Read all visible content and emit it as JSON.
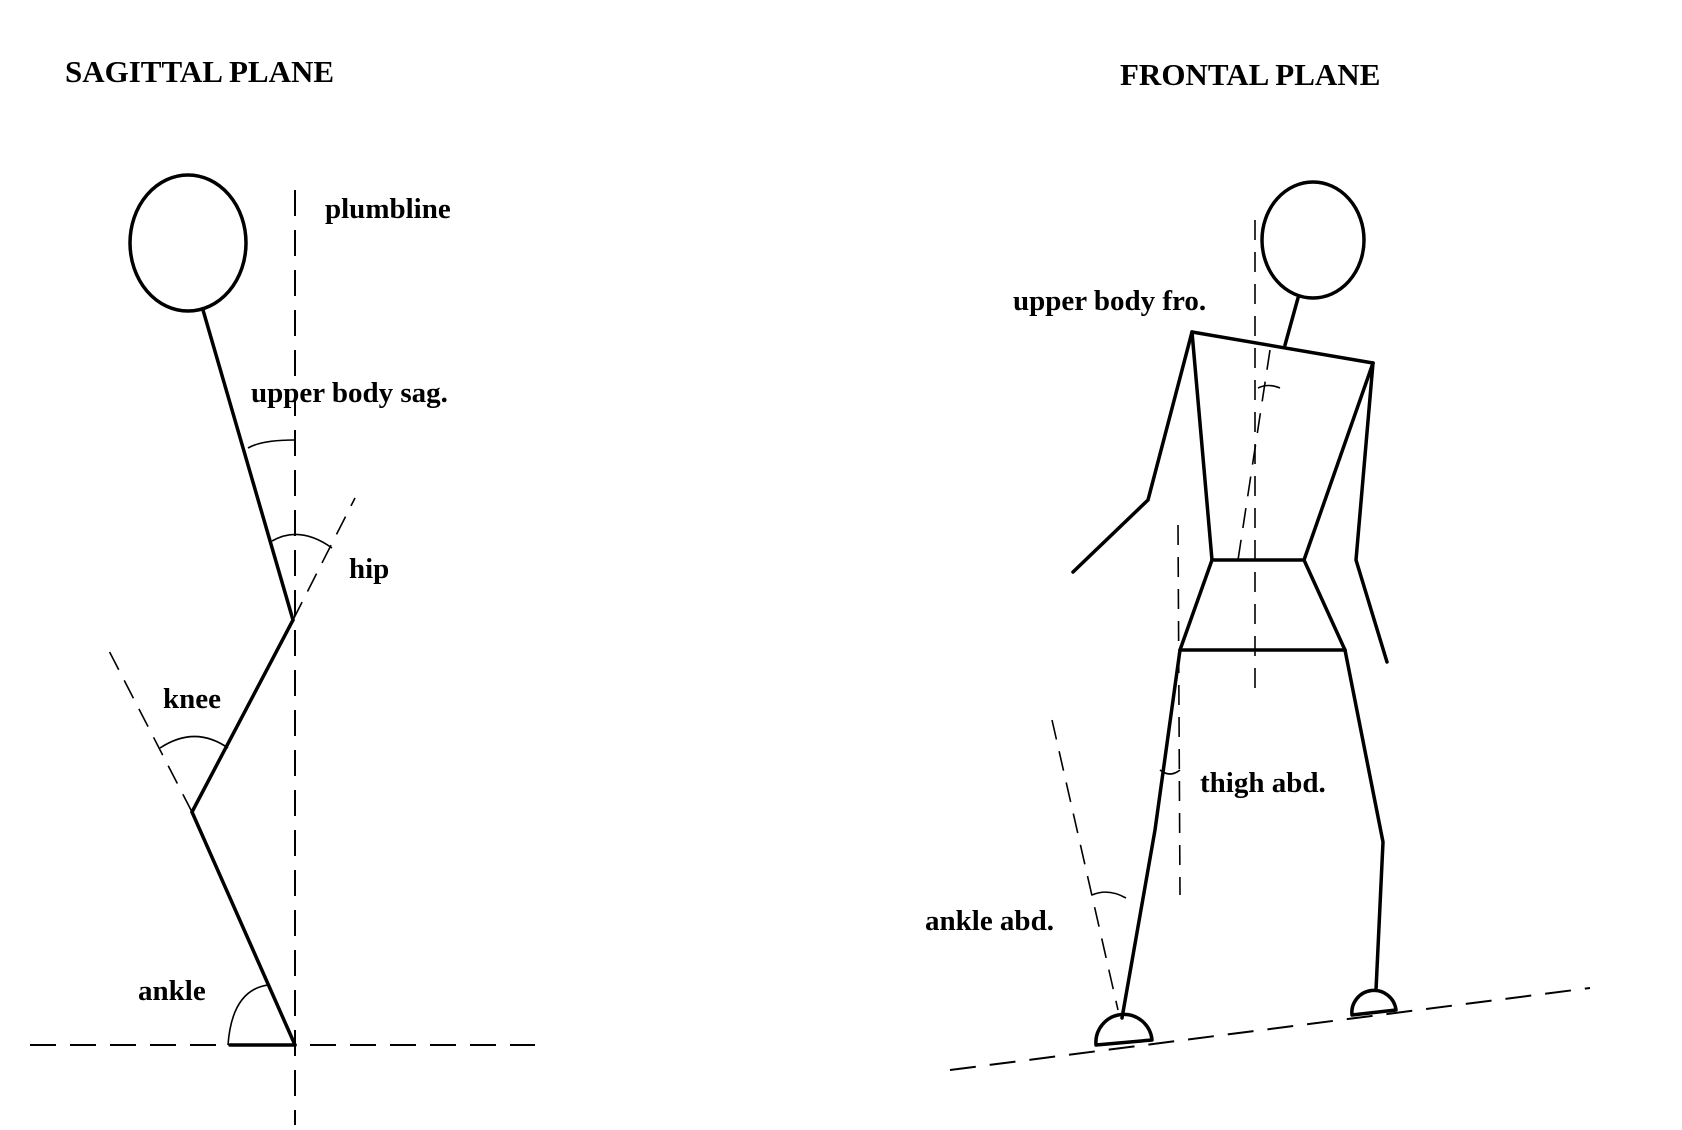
{
  "sagittal": {
    "title": "SAGITTAL PLANE",
    "labels": {
      "plumbline": "plumbline",
      "upper_body": "upper body sag.",
      "hip": "hip",
      "knee": "knee",
      "ankle": "ankle"
    }
  },
  "frontal": {
    "title": "FRONTAL PLANE",
    "labels": {
      "upper_body": "upper body fro.",
      "thigh": "thigh abd.",
      "ankle": "ankle abd."
    }
  }
}
